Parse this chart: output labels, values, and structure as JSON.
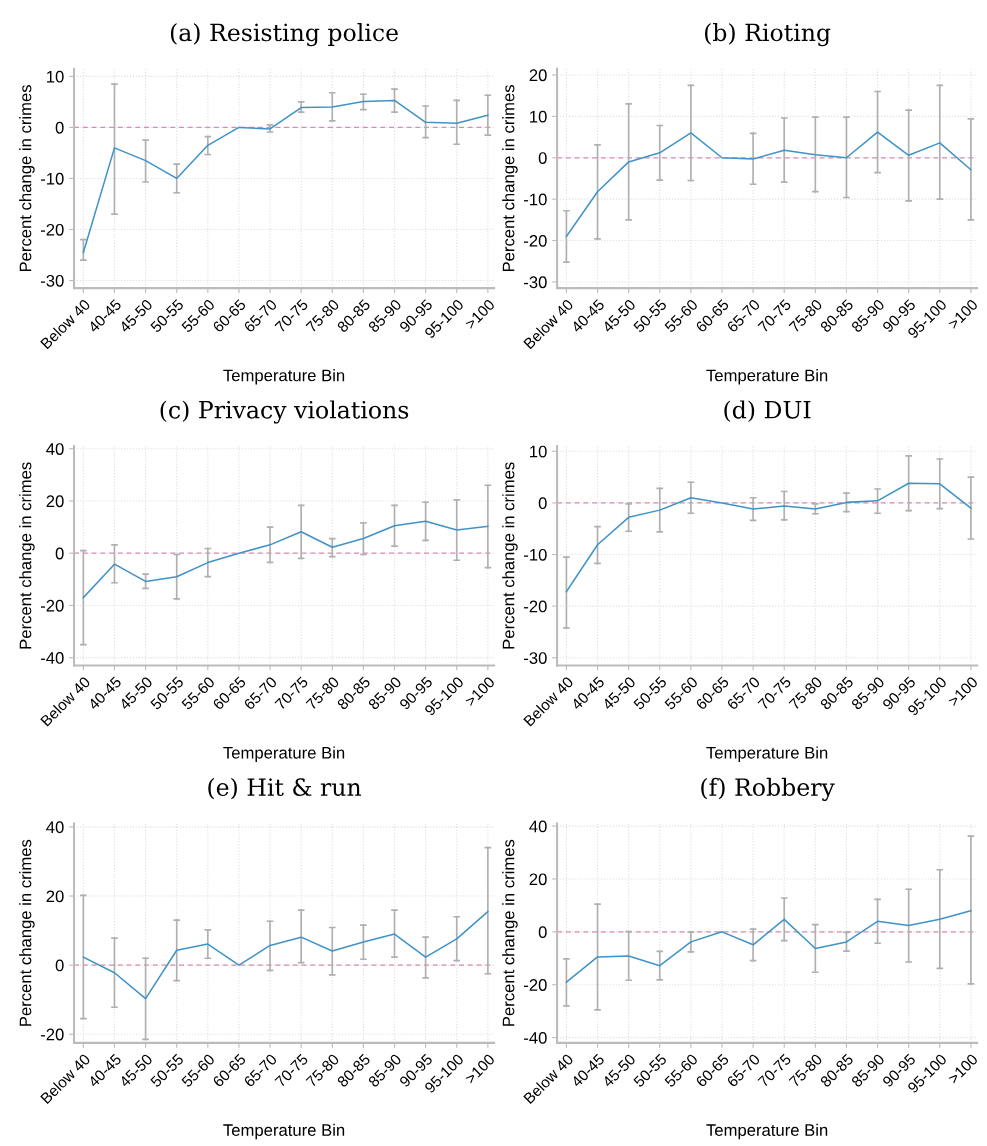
{
  "chart_data": [
    {
      "type": "line",
      "title": "(a) Resisting police",
      "xlabel": "Temperature Bin",
      "ylabel": "Percent change in crimes",
      "categories": [
        "Below 40",
        "40-45",
        "45-50",
        "50-55",
        "55-60",
        "60-65",
        "65-70",
        "70-75",
        "75-80",
        "80-85",
        "85-90",
        "90-95",
        "95-100",
        ">100"
      ],
      "series": [
        {
          "color": "#3f93c8",
          "values": [
            -24.5,
            -4,
            -6.5,
            -10,
            -3.5,
            0,
            -0.3,
            3.9,
            4,
            5.1,
            5.3,
            1,
            0.8,
            2.4
          ],
          "errors": [
            [
              -26,
              -22
            ],
            [
              -17,
              8.5
            ],
            [
              -10.7,
              -2.5
            ],
            [
              -12.8,
              -7.2
            ],
            [
              -5.3,
              -1.8
            ],
            null,
            [
              -0.9,
              0.5
            ],
            [
              3,
              5
            ],
            [
              1.3,
              6.8
            ],
            [
              3.5,
              6.5
            ],
            [
              3,
              7.5
            ],
            [
              -2,
              4.2
            ],
            [
              -3.3,
              5.3
            ],
            [
              -1.5,
              6.3
            ]
          ]
        }
      ],
      "ylim": [
        -31.5,
        11.5
      ],
      "yticks": [
        -30,
        -20,
        -10,
        0,
        10
      ],
      "grid": true,
      "marker": "none",
      "ref_lines": [
        {
          "axis": "y",
          "value": 0,
          "color": "#d98cb3",
          "line_style": "dashed"
        }
      ]
    },
    {
      "type": "line",
      "title": "(b) Rioting",
      "xlabel": "Temperature Bin",
      "ylabel": "Percent change in crimes",
      "categories": [
        "Below 40",
        "40-45",
        "45-50",
        "50-55",
        "55-60",
        "60-65",
        "65-70",
        "70-75",
        "75-80",
        "80-85",
        "85-90",
        "90-95",
        "95-100",
        ">100"
      ],
      "series": [
        {
          "color": "#3f93c8",
          "values": [
            -19,
            -8.2,
            -1,
            1.2,
            6,
            0,
            -0.3,
            1.8,
            0.7,
            0,
            6.2,
            0.6,
            3.6,
            -2.9
          ],
          "errors": [
            [
              -25.2,
              -12.8
            ],
            [
              -19.6,
              3.1
            ],
            [
              -15,
              13
            ],
            [
              -5.4,
              7.8
            ],
            [
              -5.5,
              17.5
            ],
            null,
            [
              -6.4,
              5.9
            ],
            [
              -5.9,
              9.6
            ],
            [
              -8.2,
              9.8
            ],
            [
              -9.6,
              9.8
            ],
            [
              -3.6,
              16
            ],
            [
              -10.4,
              11.5
            ],
            [
              -10,
              17.5
            ],
            [
              -15,
              9.4
            ]
          ]
        }
      ],
      "ylim": [
        -31.5,
        21.5
      ],
      "yticks": [
        -30,
        -20,
        -10,
        0,
        10,
        20
      ],
      "grid": true,
      "marker": "none",
      "ref_lines": [
        {
          "axis": "y",
          "value": 0,
          "color": "#d98cb3",
          "line_style": "dashed"
        }
      ]
    },
    {
      "type": "line",
      "title": "(c) Privacy violations",
      "xlabel": "Temperature Bin",
      "ylabel": "Percent change in crimes",
      "categories": [
        "Below 40",
        "40-45",
        "45-50",
        "50-55",
        "55-60",
        "60-65",
        "65-70",
        "70-75",
        "75-80",
        "80-85",
        "85-90",
        "90-95",
        "95-100",
        ">100"
      ],
      "series": [
        {
          "color": "#3f93c8",
          "values": [
            -17,
            -4.2,
            -10.8,
            -9,
            -3.6,
            0,
            3.2,
            8.2,
            2.3,
            5.6,
            10.5,
            12.2,
            8.9,
            10.3
          ],
          "errors": [
            [
              -35,
              1
            ],
            [
              -11.3,
              3.2
            ],
            [
              -13.5,
              -8
            ],
            [
              -17.5,
              -0.5
            ],
            [
              -9,
              1.8
            ],
            null,
            [
              -3.5,
              10
            ],
            [
              -2,
              18.3
            ],
            [
              -1.3,
              5.6
            ],
            [
              -0.5,
              11.6
            ],
            [
              2.7,
              18.3
            ],
            [
              4.9,
              19.5
            ],
            [
              -2.7,
              20.4
            ],
            [
              -5.5,
              26
            ]
          ]
        }
      ],
      "ylim": [
        -43,
        41
      ],
      "yticks": [
        -40,
        -20,
        0,
        20,
        40
      ],
      "grid": true,
      "marker": "none",
      "ref_lines": [
        {
          "axis": "y",
          "value": 0,
          "color": "#d98cb3",
          "line_style": "dashed"
        }
      ]
    },
    {
      "type": "line",
      "title": "(d) DUI",
      "xlabel": "Temperature Bin",
      "ylabel": "Percent change in crimes",
      "categories": [
        "Below 40",
        "40-45",
        "45-50",
        "50-55",
        "55-60",
        "60-65",
        "65-70",
        "70-75",
        "75-80",
        "80-85",
        "85-90",
        "90-95",
        "95-100",
        ">100"
      ],
      "series": [
        {
          "color": "#3f93c8",
          "values": [
            -17.2,
            -8.1,
            -2.8,
            -1.4,
            1,
            0,
            -1.2,
            -0.6,
            -1.2,
            0.1,
            0.4,
            3.8,
            3.7,
            -1
          ],
          "errors": [
            [
              -24.2,
              -10.5
            ],
            [
              -11.7,
              -4.6
            ],
            [
              -5.5,
              -0.2
            ],
            [
              -5.6,
              2.8
            ],
            [
              -2,
              4
            ],
            null,
            [
              -3.4,
              1
            ],
            [
              -3.3,
              2.2
            ],
            [
              -2.1,
              -0.2
            ],
            [
              -1.7,
              1.9
            ],
            [
              -2,
              2.7
            ],
            [
              -1.5,
              9.1
            ],
            [
              -1.1,
              8.5
            ],
            [
              -7,
              5
            ]
          ]
        }
      ],
      "ylim": [
        -31.5,
        11
      ],
      "yticks": [
        -30,
        -20,
        -10,
        0,
        10
      ],
      "grid": true,
      "marker": "none",
      "ref_lines": [
        {
          "axis": "y",
          "value": 0,
          "color": "#d98cb3",
          "line_style": "dashed"
        }
      ]
    },
    {
      "type": "line",
      "title": "(e) Hit & run",
      "xlabel": "Temperature Bin",
      "ylabel": "Percent change in crimes",
      "categories": [
        "Below 40",
        "40-45",
        "45-50",
        "50-55",
        "55-60",
        "60-65",
        "65-70",
        "70-75",
        "75-80",
        "80-85",
        "85-90",
        "90-95",
        "95-100",
        ">100"
      ],
      "series": [
        {
          "color": "#3f93c8",
          "values": [
            2.3,
            -2.2,
            -9.7,
            4.3,
            6.1,
            0,
            5.7,
            8.1,
            4.1,
            6.7,
            9,
            2.3,
            7.6,
            15.5
          ],
          "errors": [
            [
              -15.5,
              20.2
            ],
            [
              -12.2,
              7.8
            ],
            [
              -21.5,
              2
            ],
            [
              -4.5,
              13
            ],
            [
              2,
              10.2
            ],
            null,
            [
              -1.5,
              12.7
            ],
            [
              0.7,
              15.9
            ],
            [
              -2.8,
              10.9
            ],
            [
              1.7,
              11.6
            ],
            [
              2.3,
              15.9
            ],
            [
              -3.7,
              8.1
            ],
            [
              1.3,
              14
            ],
            [
              -2.5,
              34
            ]
          ]
        }
      ],
      "ylim": [
        -22.5,
        41
      ],
      "yticks": [
        -20,
        0,
        20,
        40
      ],
      "grid": true,
      "marker": "none",
      "ref_lines": [
        {
          "axis": "y",
          "value": 0,
          "color": "#d98cb3",
          "line_style": "dashed"
        }
      ]
    },
    {
      "type": "line",
      "title": "(f) Robbery",
      "xlabel": "Temperature Bin",
      "ylabel": "Percent change in crimes",
      "categories": [
        "Below 40",
        "40-45",
        "45-50",
        "50-55",
        "55-60",
        "60-65",
        "65-70",
        "70-75",
        "75-80",
        "80-85",
        "85-90",
        "90-95",
        "95-100",
        ">100"
      ],
      "series": [
        {
          "color": "#3f93c8",
          "values": [
            -19,
            -9.5,
            -9.1,
            -12.8,
            -3.8,
            0,
            -4.9,
            4.7,
            -6.3,
            -3.8,
            4,
            2.4,
            4.8,
            8
          ],
          "errors": [
            [
              -28,
              -10.2
            ],
            [
              -29.5,
              10.5
            ],
            [
              -18.3,
              0.1
            ],
            [
              -18.2,
              -7.4
            ],
            [
              -7.6,
              -0.1
            ],
            null,
            [
              -10.9,
              1
            ],
            [
              -3.3,
              12.8
            ],
            [
              -15.3,
              2.7
            ],
            [
              -7.3,
              -0.2
            ],
            [
              -4.3,
              12.3
            ],
            [
              -11.4,
              16.1
            ],
            [
              -13.8,
              23.5
            ],
            [
              -19.7,
              36.2
            ]
          ]
        }
      ],
      "ylim": [
        -42,
        41
      ],
      "yticks": [
        -40,
        -20,
        0,
        20,
        40
      ],
      "grid": true,
      "marker": "none",
      "ref_lines": [
        {
          "axis": "y",
          "value": 0,
          "color": "#d98cb3",
          "line_style": "dashed"
        }
      ]
    }
  ]
}
